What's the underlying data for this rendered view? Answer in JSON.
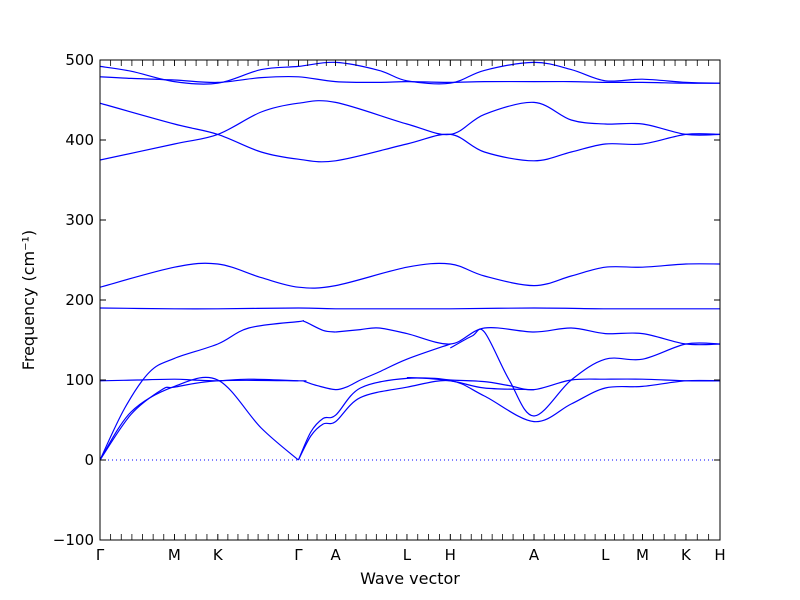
{
  "chart_data": {
    "type": "line",
    "title": "",
    "xlabel": "Wave vector",
    "ylabel": "Frequency",
    "ylabel_unit": "(cm⁻¹)",
    "ylim": [
      -100,
      500
    ],
    "yticks": [
      -100,
      0,
      100,
      200,
      300,
      400,
      500
    ],
    "zero_line": true,
    "line_color": "#0000ff",
    "zero_line_color": "#0000ff",
    "xticks": [
      {
        "label": "Γ",
        "x": 0
      },
      {
        "label": "M",
        "x": 0.12
      },
      {
        "label": "K",
        "x": 0.19
      },
      {
        "label": "Γ",
        "x": 0.32
      },
      {
        "label": "A",
        "x": 0.38
      },
      {
        "label": "L",
        "x": 0.495
      },
      {
        "label": "H",
        "x": 0.565
      },
      {
        "label": "A",
        "x": 0.7
      },
      {
        "label": "L",
        "x": 0.815
      },
      {
        "label": "M",
        "x": 0.875
      },
      {
        "label": "K",
        "x": 0.945
      },
      {
        "label": "H",
        "x": 1.0
      }
    ],
    "series": [
      {
        "x": [
          0,
          0.04,
          0.08,
          0.12,
          0.19,
          0.24,
          0.32,
          0.33,
          0.36,
          0.38
        ],
        "y": [
          0,
          65,
          110,
          127,
          145,
          165,
          173,
          173,
          162,
          160
        ]
      },
      {
        "x": [
          0,
          0.05,
          0.12,
          0.19,
          0.26,
          0.32
        ],
        "y": [
          0,
          60,
          92,
          100,
          40,
          0
        ]
      },
      {
        "x": [
          0,
          0.05,
          0.1,
          0.12,
          0.19,
          0.32,
          0.33,
          0.35,
          0.38,
          0.4,
          0.42,
          0.45,
          0.495,
          0.565
        ],
        "y": [
          0,
          57,
          88,
          91,
          99,
          99,
          98,
          93,
          88,
          92,
          100,
          110,
          126,
          145
        ]
      },
      {
        "x": [
          0,
          0.06,
          0.12,
          0.15,
          0.19,
          0.24,
          0.32
        ],
        "y": [
          99,
          100,
          101,
          100,
          99,
          101,
          99
        ]
      },
      {
        "x": [
          0.32,
          0.34,
          0.36,
          0.38,
          0.42,
          0.495,
          0.565,
          0.62,
          0.7
        ],
        "y": [
          0,
          35,
          52,
          56,
          90,
          102,
          99,
          90,
          88
        ]
      },
      {
        "x": [
          0.32,
          0.34,
          0.36,
          0.38,
          0.42,
          0.495,
          0.565,
          0.62,
          0.7,
          0.76,
          0.815,
          0.875,
          0.945,
          1.0
        ],
        "y": [
          0,
          30,
          45,
          48,
          78,
          91,
          99,
          80,
          48,
          70,
          90,
          92,
          99,
          99
        ]
      },
      {
        "x": [
          0.38,
          0.42,
          0.45,
          0.495,
          0.565,
          0.62,
          0.7,
          0.76,
          0.815,
          0.875,
          0.945,
          1.0
        ],
        "y": [
          160,
          163,
          165,
          158,
          145,
          165,
          160,
          165,
          158,
          158,
          145,
          145
        ]
      },
      {
        "x": [
          0.495,
          0.54,
          0.565,
          0.62,
          0.66,
          0.7,
          0.76,
          0.815,
          0.875,
          0.945,
          1.0
        ],
        "y": [
          103,
          102,
          100,
          98,
          93,
          88,
          100,
          101,
          101,
          99,
          99
        ]
      },
      {
        "x": [
          0.565,
          0.6,
          0.62,
          0.66,
          0.7,
          0.76,
          0.815,
          0.875,
          0.945,
          1.0
        ],
        "y": [
          140,
          155,
          160,
          100,
          55,
          100,
          126,
          126,
          145,
          145
        ]
      },
      {
        "x": [
          0,
          0.12,
          0.19,
          0.32,
          0.38,
          0.495,
          0.565,
          0.7,
          0.815,
          0.875,
          0.945,
          1.0
        ],
        "y": [
          190,
          189,
          189,
          190,
          189,
          189,
          189,
          190,
          189,
          189,
          189,
          189
        ]
      },
      {
        "x": [
          0,
          0.12,
          0.19,
          0.26,
          0.32,
          0.38,
          0.495,
          0.565,
          0.62,
          0.7,
          0.76,
          0.815,
          0.875,
          0.945,
          1.0
        ],
        "y": [
          216,
          241,
          245,
          228,
          216,
          218,
          241,
          245,
          230,
          218,
          230,
          241,
          241,
          245,
          245
        ]
      },
      {
        "x": [
          0,
          0.12,
          0.19,
          0.26,
          0.32,
          0.38,
          0.495,
          0.565,
          0.62,
          0.7,
          0.76,
          0.815,
          0.875,
          0.945,
          1.0
        ],
        "y": [
          375,
          395,
          407,
          435,
          446,
          447,
          420,
          407,
          432,
          447,
          425,
          420,
          420,
          407,
          407
        ]
      },
      {
        "x": [
          0,
          0.12,
          0.19,
          0.26,
          0.32,
          0.38,
          0.495,
          0.565,
          0.62,
          0.7,
          0.76,
          0.815,
          0.875,
          0.945,
          1.0
        ],
        "y": [
          446,
          420,
          407,
          385,
          376,
          374,
          395,
          407,
          385,
          374,
          385,
          395,
          395,
          407,
          407
        ]
      },
      {
        "x": [
          0,
          0.05,
          0.12,
          0.19,
          0.26,
          0.32,
          0.38,
          0.45,
          0.495,
          0.565,
          0.62,
          0.7,
          0.76,
          0.815,
          0.875,
          0.945,
          1.0
        ],
        "y": [
          479,
          477,
          475,
          472,
          478,
          479,
          473,
          472,
          473,
          472,
          473,
          473,
          473,
          472,
          472,
          471,
          471
        ]
      },
      {
        "x": [
          0,
          0.05,
          0.12,
          0.19,
          0.26,
          0.32,
          0.38,
          0.45,
          0.495,
          0.565,
          0.62,
          0.7,
          0.76,
          0.815,
          0.875,
          0.945,
          1.0
        ],
        "y": [
          492,
          486,
          473,
          471,
          488,
          492,
          497,
          487,
          474,
          471,
          487,
          497,
          488,
          474,
          476,
          472,
          471
        ]
      }
    ]
  }
}
